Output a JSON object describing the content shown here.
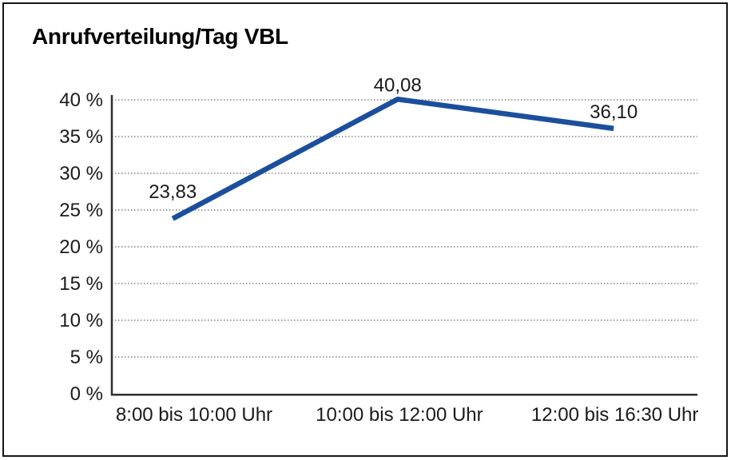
{
  "chart_data": {
    "type": "line",
    "title": "Anrufverteilung/Tag VBL",
    "categories": [
      "8:00 bis 10:00 Uhr",
      "10:00 bis 12:00 Uhr",
      "12:00 bis 16:30 Uhr"
    ],
    "values": [
      23.83,
      40.08,
      36.1
    ],
    "point_labels": [
      "23,83",
      "40,08",
      "36,10"
    ],
    "ylim": [
      0,
      40
    ],
    "ytick_step": 5,
    "ytick_labels": [
      "0 %",
      "5 %",
      "10 %",
      "15 %",
      "20 %",
      "25 %",
      "30 %",
      "35 %",
      "40 %"
    ],
    "xlabel": "",
    "ylabel": "",
    "legend": "none",
    "grid": "horizontal-dotted",
    "line_color": "#1B4F9C",
    "grid_color": "#7a7a7a",
    "axis_color": "#2e2e2e",
    "text_color": "#1a1a1a"
  }
}
